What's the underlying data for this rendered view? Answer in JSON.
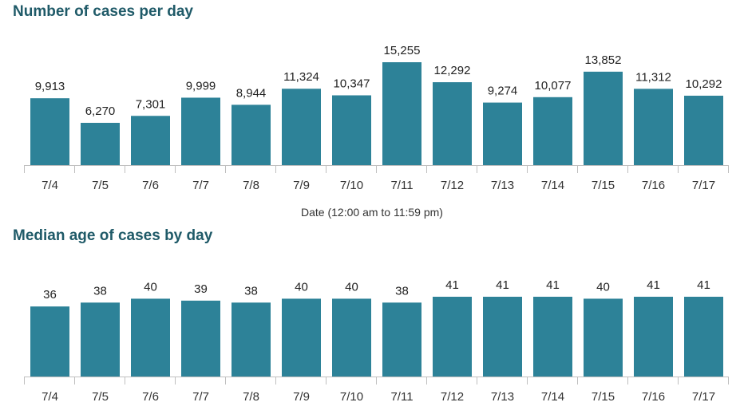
{
  "chart_data": [
    {
      "type": "bar",
      "title": "Number of cases per day",
      "xlabel": "Date (12:00 am to 11:59 pm)",
      "ylabel": "",
      "categories": [
        "7/4",
        "7/5",
        "7/6",
        "7/7",
        "7/8",
        "7/9",
        "7/10",
        "7/11",
        "7/12",
        "7/13",
        "7/14",
        "7/15",
        "7/16",
        "7/17"
      ],
      "values": [
        9913,
        6270,
        7301,
        9999,
        8944,
        11324,
        10347,
        15255,
        12292,
        9274,
        10077,
        13852,
        11312,
        10292
      ],
      "value_labels": [
        "9,913",
        "6,270",
        "7,301",
        "9,999",
        "8,944",
        "11,324",
        "10,347",
        "15,255",
        "12,292",
        "9,274",
        "10,077",
        "13,852",
        "11,312",
        "10,292"
      ],
      "ylim": [
        0,
        15255
      ],
      "grid": false,
      "color": "#2d8298"
    },
    {
      "type": "bar",
      "title": "Median age of cases by day",
      "xlabel": "",
      "ylabel": "",
      "categories": [
        "7/4",
        "7/5",
        "7/6",
        "7/7",
        "7/8",
        "7/9",
        "7/10",
        "7/11",
        "7/12",
        "7/13",
        "7/14",
        "7/15",
        "7/16",
        "7/17"
      ],
      "values": [
        36,
        38,
        40,
        39,
        38,
        40,
        40,
        38,
        41,
        41,
        41,
        40,
        41,
        41
      ],
      "value_labels": [
        "36",
        "38",
        "40",
        "39",
        "38",
        "40",
        "40",
        "38",
        "41",
        "41",
        "41",
        "40",
        "41",
        "41"
      ],
      "ylim": [
        0,
        41
      ],
      "grid": false,
      "color": "#2d8298"
    }
  ]
}
